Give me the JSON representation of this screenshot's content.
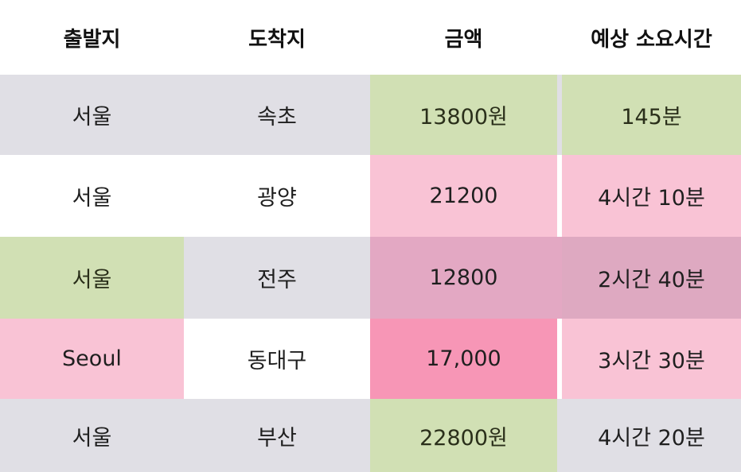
{
  "headers": [
    "출발지",
    "도착지",
    "금액",
    "예상 소요시간"
  ],
  "rows": [
    [
      "서울",
      "속초",
      "13800원",
      "145분"
    ],
    [
      "서울",
      "광양",
      "21200",
      "4시간 10분"
    ],
    [
      "서울",
      "전주",
      "12800",
      "2시간 40분"
    ],
    [
      "Seoul",
      "동대구",
      "17,000",
      "3시간 30분"
    ],
    [
      "서울",
      "부산",
      "22800원",
      "4시간 20분"
    ]
  ],
  "colors": {
    "grey": "#e0dfe5",
    "green": "#d1e0b4",
    "pink": "#f9c3d5",
    "mauve": "#e3a8c3",
    "hot_pink": "#f796b6"
  }
}
